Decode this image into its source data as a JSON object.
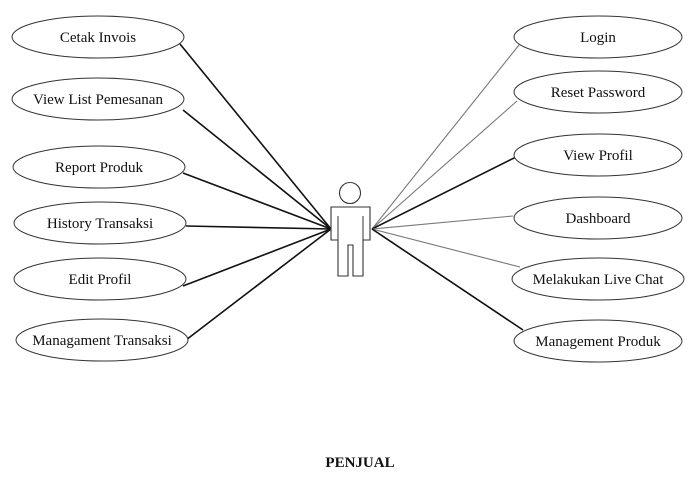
{
  "diagram": {
    "type": "use-case",
    "actor": {
      "label": "PENJUAL",
      "icon": "stick-figure-actor-icon"
    },
    "left_use_cases": [
      "Cetak Invois",
      "View List Pemesanan",
      "Report Produk",
      "History Transaksi",
      "Edit Profil",
      "Managament Transaksi"
    ],
    "right_use_cases": [
      "Login",
      "Reset Password",
      "View Profil",
      "Dashboard",
      "Melakukan Live Chat",
      "Management Produk"
    ],
    "colors": {
      "line_dark": "#111111",
      "line_light": "#777777",
      "ellipse_stroke": "#333333"
    }
  }
}
